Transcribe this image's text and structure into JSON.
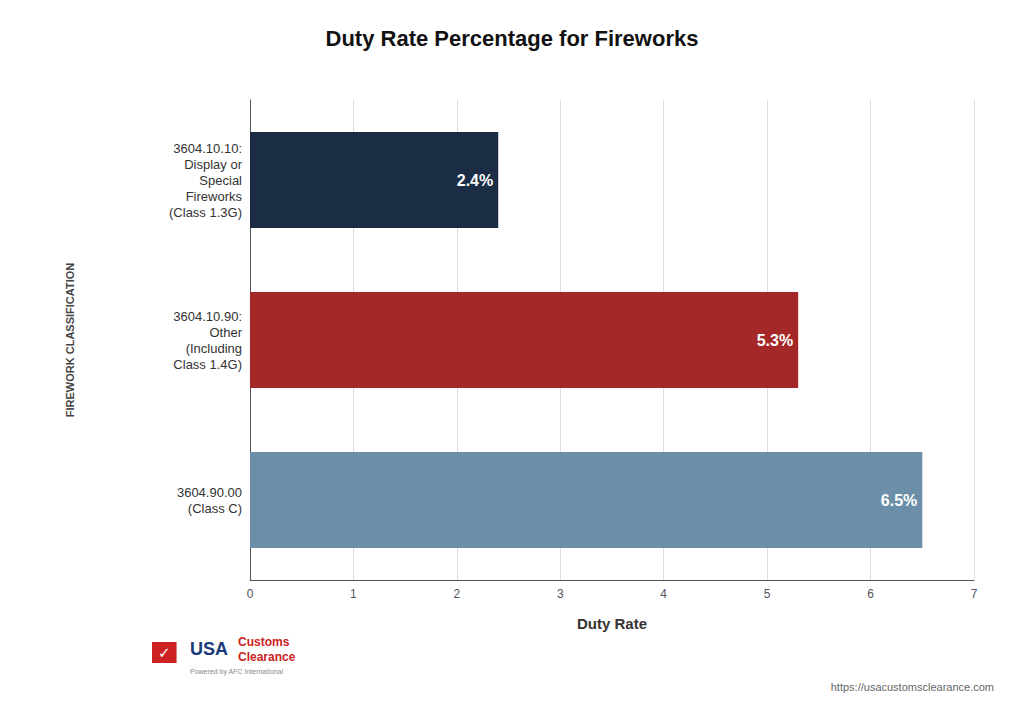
{
  "chart_data": {
    "type": "bar",
    "orientation": "horizontal",
    "title": "Duty Rate Percentage for Fireworks",
    "xlabel": "Duty Rate",
    "ylabel": "FIREWORK CLASSIFICATION",
    "categories": [
      "3604.90.00\n(Class C)",
      "3604.10.90:\nOther\n(Including\nClass 1.4G)",
      "3604.10.10:\nDisplay or\nSpecial\nFireworks\n(Class 1.3G)"
    ],
    "values": [
      6.5,
      5.3,
      2.4
    ],
    "value_labels": [
      "6.5%",
      "5.3%",
      "2.4%"
    ],
    "data_labels": true,
    "colors": [
      "#6b8fa8",
      "#a52828",
      "#1b2d44"
    ],
    "xlim": [
      0,
      7
    ],
    "xticks": [
      0,
      1,
      2,
      3,
      4,
      5,
      6,
      7
    ],
    "grid": true,
    "annotations": [
      "https://usacustomsclearance.com",
      "✓",
      "USA",
      "Customs",
      "Clearance",
      "Powered by AFC International"
    ]
  }
}
